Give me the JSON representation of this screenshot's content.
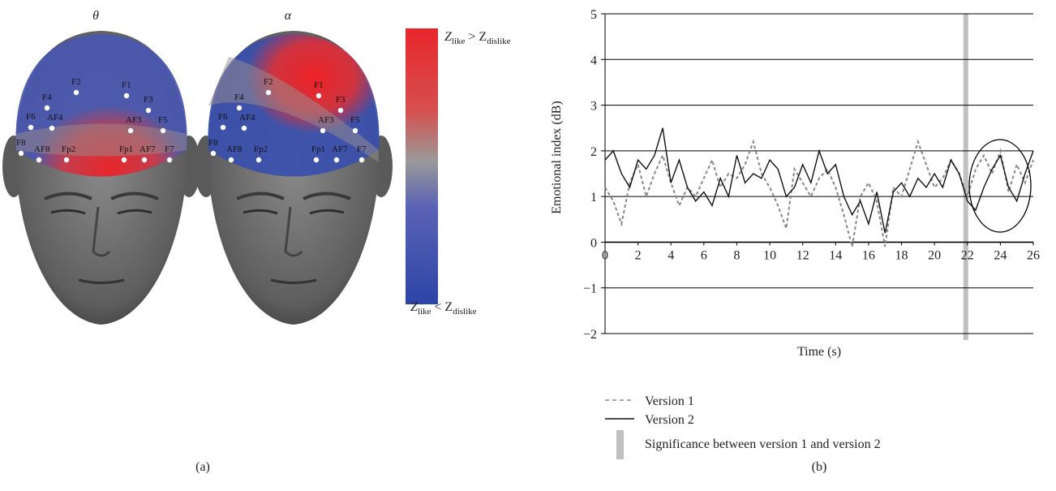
{
  "panel_a": {
    "titles": [
      "θ",
      "α"
    ],
    "colorbar": {
      "top": {
        "symbol": "Z",
        "sub1": "like",
        "op": " > Z",
        "sub2": "dislike"
      },
      "bottom": {
        "symbol": "Z",
        "sub1": "like",
        "op": " < Z",
        "sub2": "dislike"
      }
    },
    "electrodes": [
      "F2",
      "F1",
      "F4",
      "F3",
      "F6",
      "AF4",
      "AF3",
      "F5",
      "F8",
      "AF8",
      "Fp2",
      "Fp1",
      "AF7",
      "F7"
    ],
    "label": "(a)"
  },
  "chart_data": {
    "type": "line",
    "x": [
      0,
      0.5,
      1,
      1.5,
      2,
      2.5,
      3,
      3.5,
      4,
      4.5,
      5,
      5.5,
      6,
      6.5,
      7,
      7.5,
      8,
      8.5,
      9,
      9.5,
      10,
      10.5,
      11,
      11.5,
      12,
      12.5,
      13,
      13.5,
      14,
      14.5,
      15,
      15.5,
      16,
      16.5,
      17,
      17.5,
      18,
      18.5,
      19,
      19.5,
      20,
      20.5,
      21,
      21.5,
      22,
      22.5,
      23,
      23.5,
      24,
      24.5,
      25,
      25.5,
      26
    ],
    "series": [
      {
        "name": "Version 1",
        "color": "#888888",
        "dashed": true,
        "values": [
          1.2,
          0.9,
          0.4,
          1.3,
          1.7,
          1.0,
          1.5,
          1.9,
          1.3,
          0.8,
          1.2,
          1.0,
          1.4,
          1.8,
          1.2,
          1.5,
          1.4,
          1.7,
          2.2,
          1.5,
          1.2,
          0.8,
          0.3,
          1.6,
          1.3,
          1.0,
          1.4,
          1.6,
          1.2,
          0.6,
          -0.1,
          1.0,
          1.3,
          0.9,
          -0.1,
          1.2,
          1.0,
          1.6,
          2.2,
          1.7,
          1.2,
          1.4,
          1.8,
          1.5,
          1.0,
          1.6,
          1.9,
          1.5,
          2.0,
          1.1,
          1.7,
          1.3,
          1.8
        ]
      },
      {
        "name": "Version 2",
        "color": "#111111",
        "dashed": false,
        "values": [
          1.8,
          2.0,
          1.5,
          1.2,
          1.8,
          1.6,
          1.9,
          2.5,
          1.3,
          1.8,
          1.2,
          0.9,
          1.1,
          0.8,
          1.4,
          1.0,
          1.9,
          1.3,
          1.5,
          1.4,
          1.8,
          1.6,
          1.0,
          1.2,
          1.7,
          1.3,
          2.0,
          1.5,
          1.7,
          1.0,
          0.6,
          0.9,
          0.4,
          1.1,
          0.2,
          1.1,
          1.3,
          1.0,
          1.4,
          1.2,
          1.5,
          1.2,
          1.8,
          1.5,
          0.9,
          0.7,
          1.2,
          1.6,
          1.9,
          1.2,
          0.9,
          1.5,
          2.0
        ]
      }
    ],
    "significance": {
      "name": "Significance between version 1 and version 2",
      "x": 21.9,
      "color": "#c0c0c0"
    },
    "xlabel": "Time (s)",
    "ylabel": "Emotional index (dB)",
    "xlim": [
      0,
      26
    ],
    "xticks": [
      0,
      2,
      4,
      6,
      8,
      10,
      12,
      14,
      16,
      18,
      20,
      22,
      24,
      26
    ],
    "ylim": [
      -2,
      5
    ],
    "yticks": [
      {
        "value": -2,
        "label": "−2"
      },
      {
        "value": -1,
        "label": "−1"
      },
      0,
      1,
      2,
      3,
      4,
      5
    ],
    "grid": true,
    "panel_label": "(b)"
  }
}
